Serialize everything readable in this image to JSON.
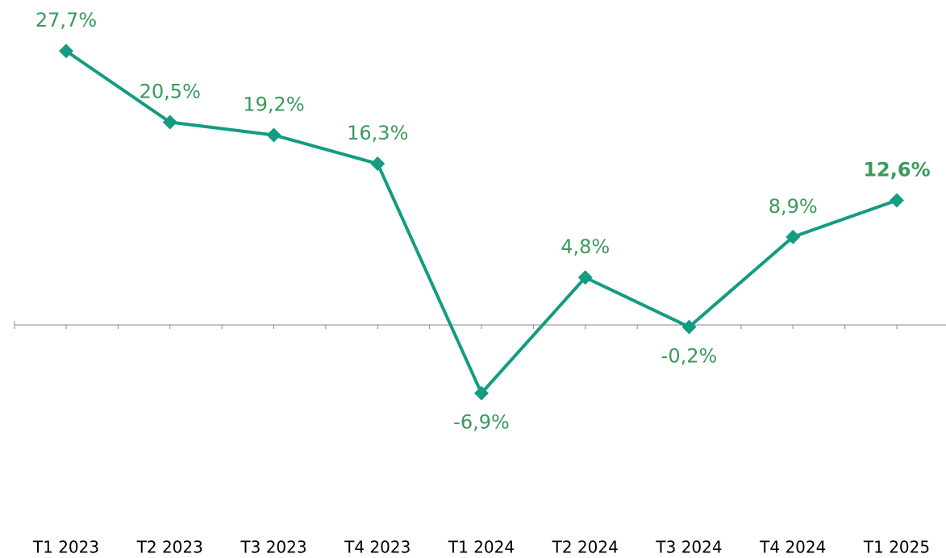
{
  "chart_data": {
    "type": "line",
    "categories": [
      "T1 2023",
      "T2 2023",
      "T3 2023",
      "T4 2023",
      "T1 2024",
      "T2 2024",
      "T3 2024",
      "T4 2024",
      "T1 2025"
    ],
    "series": [
      {
        "color": "#139c82",
        "values": [
          27.7,
          20.5,
          19.2,
          16.3,
          -6.9,
          4.8,
          -0.2,
          8.9,
          12.6
        ],
        "value_labels": [
          "27,7%",
          "20,5%",
          "19,2%",
          "16,3%",
          "-6,9%",
          "4,8%",
          "-0,2%",
          "8,9%",
          "12,6%"
        ]
      }
    ],
    "ylim": [
      -15,
      30
    ]
  }
}
